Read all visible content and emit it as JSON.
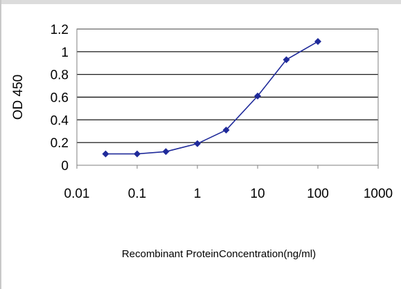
{
  "chart_data": {
    "type": "line",
    "x_scale": "log",
    "xlabel": "Recombinant ProteinConcentration(ng/ml)",
    "ylabel": "OD 450",
    "xlim": [
      0.01,
      1000
    ],
    "ylim": [
      0,
      1.2
    ],
    "x_ticks": [
      "0.01",
      "0.1",
      "1",
      "10",
      "100",
      "1000"
    ],
    "y_ticks": [
      "0",
      "0.2",
      "0.4",
      "0.6",
      "0.8",
      "1",
      "1.2"
    ],
    "grid": "horizontal",
    "legend": "none",
    "series": [
      {
        "x": [
          0.03,
          0.1,
          0.3,
          1,
          3,
          10,
          30,
          100
        ],
        "y": [
          0.1,
          0.1,
          0.12,
          0.19,
          0.31,
          0.61,
          0.93,
          1.09
        ]
      }
    ],
    "colors": {
      "series": "#1f2a9a",
      "grid": "#000000",
      "axis": "#7f7f7f",
      "plot_bg": "#ffffff"
    }
  }
}
